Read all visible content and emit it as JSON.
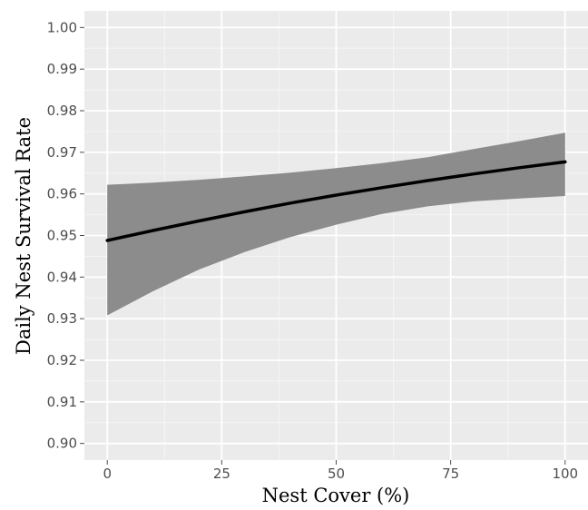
{
  "chart_data": {
    "type": "line",
    "title": "",
    "xlabel": "Nest Cover (%)",
    "ylabel": "Daily Nest Survival Rate",
    "xlim": [
      -5,
      105
    ],
    "ylim": [
      0.896,
      1.004
    ],
    "x_ticks": [
      0,
      25,
      50,
      75,
      100
    ],
    "x_tick_labels": [
      "0",
      "25",
      "50",
      "75",
      "100"
    ],
    "y_ticks": [
      0.9,
      0.91,
      0.92,
      0.93,
      0.94,
      0.95,
      0.96,
      0.97,
      0.98,
      0.99,
      1.0
    ],
    "y_tick_labels": [
      "0.90",
      "0.91",
      "0.92",
      "0.93",
      "0.94",
      "0.95",
      "0.96",
      "0.97",
      "0.98",
      "0.99",
      "1.00"
    ],
    "grid": true,
    "series": [
      {
        "x": [
          0,
          10,
          20,
          30,
          40,
          50,
          60,
          70,
          80,
          90,
          100
        ],
        "y": [
          0.9488,
          0.9512,
          0.9535,
          0.9557,
          0.9578,
          0.9597,
          0.9615,
          0.9632,
          0.9648,
          0.9663,
          0.9677
        ],
        "lower": [
          0.9308,
          0.9366,
          0.9418,
          0.946,
          0.9496,
          0.9526,
          0.9552,
          0.957,
          0.9582,
          0.9589,
          0.9595
        ],
        "upper": [
          0.9622,
          0.9627,
          0.9634,
          0.9642,
          0.9651,
          0.9662,
          0.9674,
          0.9688,
          0.9708,
          0.9727,
          0.9747
        ]
      }
    ],
    "colors": {
      "panel_background": "#ebebeb",
      "grid_major": "#ffffff",
      "grid_minor": "#f5f5f5",
      "line": "#000000",
      "ribbon": "#8c8c8c"
    }
  }
}
